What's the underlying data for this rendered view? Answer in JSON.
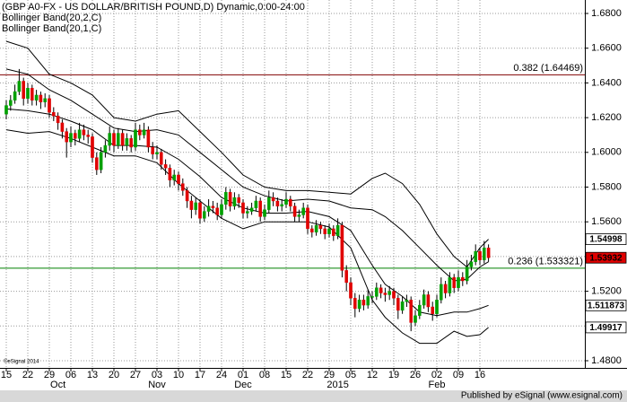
{
  "chart_data": {
    "type": "candlestick",
    "title": "(GBP A0-FX - US DOLLAR/BRITISH POUND,D) Dynamic,0:00-24:00",
    "indicators": [
      "Bollinger Band(20,2,C)",
      "Bollinger Band(20,1,C)"
    ],
    "watermark": "©eSignal 2014",
    "footer": "Published by eSignal (www.esignal.com)",
    "up_color": "#00a000",
    "down_color": "#e00000",
    "band_color": "#000000",
    "grid": true,
    "ylim": [
      1.48,
      1.68
    ],
    "yticks": [
      {
        "value": 1.48,
        "label": "1.4800"
      },
      {
        "value": 1.5,
        "label": "1.5000"
      },
      {
        "value": 1.52,
        "label": "1.5200"
      },
      {
        "value": 1.54,
        "label": "1.5400"
      },
      {
        "value": 1.56,
        "label": "1.5600"
      },
      {
        "value": 1.58,
        "label": "1.5800"
      },
      {
        "value": 1.6,
        "label": "1.6000"
      },
      {
        "value": 1.62,
        "label": "1.6200"
      },
      {
        "value": 1.64,
        "label": "1.6400"
      },
      {
        "value": 1.66,
        "label": "1.6600"
      },
      {
        "value": 1.68,
        "label": "1.6800"
      }
    ],
    "categories": [
      "15",
      null,
      null,
      null,
      null,
      "22",
      null,
      null,
      null,
      null,
      "29",
      null,
      null,
      null,
      null,
      "06",
      null,
      null,
      null,
      null,
      "13",
      null,
      null,
      null,
      null,
      "20",
      null,
      null,
      null,
      null,
      "27",
      null,
      null,
      null,
      null,
      "03",
      null,
      null,
      null,
      null,
      "10",
      null,
      null,
      null,
      null,
      "17",
      null,
      null,
      null,
      null,
      "24",
      null,
      null,
      null,
      null,
      "01",
      null,
      null,
      null,
      null,
      "08",
      null,
      null,
      null,
      null,
      "15",
      null,
      null,
      null,
      null,
      "22",
      null,
      null,
      null,
      null,
      "29",
      null,
      null,
      null,
      null,
      "05",
      null,
      null,
      null,
      null,
      "12",
      null,
      null,
      null,
      null,
      "19",
      null,
      null,
      null,
      null,
      "26",
      null,
      null,
      null,
      null,
      "02",
      null,
      null,
      null,
      null,
      "09",
      null,
      null,
      null,
      null,
      "16",
      null,
      null
    ],
    "months": [
      {
        "label": "Oct",
        "at": 12
      },
      {
        "label": "Nov",
        "at": 35
      },
      {
        "label": "Dec",
        "at": 55
      },
      {
        "label": "2015",
        "at": 77
      },
      {
        "label": "Feb",
        "at": 100
      }
    ],
    "candles": [
      [
        1.622,
        1.63,
        1.619,
        1.627
      ],
      [
        1.627,
        1.633,
        1.624,
        1.63
      ],
      [
        1.63,
        1.639,
        1.628,
        1.635
      ],
      [
        1.635,
        1.648,
        1.633,
        1.641
      ],
      [
        1.641,
        1.643,
        1.627,
        1.631
      ],
      [
        1.631,
        1.64,
        1.628,
        1.637
      ],
      [
        1.637,
        1.639,
        1.627,
        1.63
      ],
      [
        1.63,
        1.636,
        1.627,
        1.633
      ],
      [
        1.633,
        1.635,
        1.625,
        1.629
      ],
      [
        1.629,
        1.634,
        1.626,
        1.631
      ],
      [
        1.631,
        1.633,
        1.62,
        1.623
      ],
      [
        1.623,
        1.626,
        1.618,
        1.621
      ],
      [
        1.621,
        1.623,
        1.613,
        1.617
      ],
      [
        1.617,
        1.619,
        1.608,
        1.612
      ],
      [
        1.612,
        1.614,
        1.597,
        1.606
      ],
      [
        1.606,
        1.615,
        1.603,
        1.611
      ],
      [
        1.611,
        1.613,
        1.604,
        1.608
      ],
      [
        1.608,
        1.617,
        1.606,
        1.613
      ],
      [
        1.613,
        1.616,
        1.607,
        1.61
      ],
      [
        1.61,
        1.613,
        1.605,
        1.609
      ],
      [
        1.609,
        1.611,
        1.594,
        1.597
      ],
      [
        1.597,
        1.6,
        1.587,
        1.59
      ],
      [
        1.59,
        1.603,
        1.588,
        1.6
      ],
      [
        1.6,
        1.607,
        1.597,
        1.604
      ],
      [
        1.604,
        1.615,
        1.601,
        1.611
      ],
      [
        1.611,
        1.613,
        1.6,
        1.604
      ],
      [
        1.604,
        1.614,
        1.602,
        1.611
      ],
      [
        1.611,
        1.613,
        1.601,
        1.604
      ],
      [
        1.604,
        1.611,
        1.601,
        1.608
      ],
      [
        1.608,
        1.61,
        1.6,
        1.603
      ],
      [
        1.603,
        1.617,
        1.601,
        1.613
      ],
      [
        1.613,
        1.616,
        1.607,
        1.61
      ],
      [
        1.61,
        1.617,
        1.608,
        1.613
      ],
      [
        1.613,
        1.615,
        1.6,
        1.603
      ],
      [
        1.603,
        1.606,
        1.596,
        1.599
      ],
      [
        1.599,
        1.604,
        1.596,
        1.6
      ],
      [
        1.6,
        1.602,
        1.59,
        1.593
      ],
      [
        1.593,
        1.596,
        1.587,
        1.591
      ],
      [
        1.591,
        1.593,
        1.58,
        1.584
      ],
      [
        1.584,
        1.59,
        1.581,
        1.587
      ],
      [
        1.587,
        1.589,
        1.578,
        1.582
      ],
      [
        1.582,
        1.585,
        1.575,
        1.578
      ],
      [
        1.578,
        1.58,
        1.568,
        1.572
      ],
      [
        1.572,
        1.575,
        1.562,
        1.567
      ],
      [
        1.567,
        1.574,
        1.564,
        1.571
      ],
      [
        1.571,
        1.573,
        1.559,
        1.562
      ],
      [
        1.562,
        1.569,
        1.56,
        1.566
      ],
      [
        1.566,
        1.573,
        1.563,
        1.569
      ],
      [
        1.569,
        1.572,
        1.565,
        1.568
      ],
      [
        1.568,
        1.571,
        1.561,
        1.564
      ],
      [
        1.564,
        1.573,
        1.562,
        1.57
      ],
      [
        1.57,
        1.58,
        1.567,
        1.577
      ],
      [
        1.577,
        1.579,
        1.566,
        1.569
      ],
      [
        1.569,
        1.577,
        1.567,
        1.574
      ],
      [
        1.574,
        1.576,
        1.568,
        1.571
      ],
      [
        1.571,
        1.573,
        1.562,
        1.565
      ],
      [
        1.565,
        1.569,
        1.562,
        1.566
      ],
      [
        1.566,
        1.571,
        1.564,
        1.568
      ],
      [
        1.568,
        1.575,
        1.566,
        1.572
      ],
      [
        1.572,
        1.574,
        1.56,
        1.563
      ],
      [
        1.563,
        1.57,
        1.561,
        1.567
      ],
      [
        1.567,
        1.578,
        1.565,
        1.574
      ],
      [
        1.574,
        1.577,
        1.569,
        1.572
      ],
      [
        1.572,
        1.574,
        1.566,
        1.569
      ],
      [
        1.569,
        1.573,
        1.566,
        1.57
      ],
      [
        1.57,
        1.577,
        1.568,
        1.573
      ],
      [
        1.573,
        1.575,
        1.566,
        1.569
      ],
      [
        1.569,
        1.571,
        1.56,
        1.563
      ],
      [
        1.563,
        1.567,
        1.56,
        1.564
      ],
      [
        1.564,
        1.571,
        1.562,
        1.568
      ],
      [
        1.568,
        1.57,
        1.553,
        1.556
      ],
      [
        1.556,
        1.558,
        1.551,
        1.554
      ],
      [
        1.554,
        1.561,
        1.552,
        1.558
      ],
      [
        1.558,
        1.56,
        1.553,
        1.556
      ],
      [
        1.556,
        1.558,
        1.55,
        1.553
      ],
      [
        1.553,
        1.559,
        1.551,
        1.556
      ],
      [
        1.556,
        1.558,
        1.549,
        1.552
      ],
      [
        1.552,
        1.562,
        1.55,
        1.558
      ],
      [
        1.558,
        1.56,
        1.528,
        1.532
      ],
      [
        1.532,
        1.535,
        1.52,
        1.525
      ],
      [
        1.525,
        1.528,
        1.512,
        1.516
      ],
      [
        1.516,
        1.519,
        1.505,
        1.51
      ],
      [
        1.51,
        1.518,
        1.508,
        1.515
      ],
      [
        1.515,
        1.518,
        1.509,
        1.512
      ],
      [
        1.512,
        1.521,
        1.51,
        1.517
      ],
      [
        1.517,
        1.52,
        1.513,
        1.517
      ],
      [
        1.517,
        1.525,
        1.515,
        1.522
      ],
      [
        1.522,
        1.524,
        1.516,
        1.519
      ],
      [
        1.519,
        1.522,
        1.514,
        1.518
      ],
      [
        1.518,
        1.523,
        1.515,
        1.52
      ],
      [
        1.52,
        1.522,
        1.512,
        1.516
      ],
      [
        1.516,
        1.518,
        1.504,
        1.509
      ],
      [
        1.509,
        1.517,
        1.507,
        1.514
      ],
      [
        1.514,
        1.518,
        1.511,
        1.515
      ],
      [
        1.515,
        1.517,
        1.497,
        1.502
      ],
      [
        1.502,
        1.509,
        1.5,
        1.506
      ],
      [
        1.506,
        1.515,
        1.504,
        1.512
      ],
      [
        1.512,
        1.521,
        1.51,
        1.518
      ],
      [
        1.518,
        1.52,
        1.508,
        1.511
      ],
      [
        1.511,
        1.514,
        1.503,
        1.507
      ],
      [
        1.507,
        1.518,
        1.505,
        1.515
      ],
      [
        1.515,
        1.528,
        1.513,
        1.524
      ],
      [
        1.524,
        1.526,
        1.516,
        1.519
      ],
      [
        1.519,
        1.531,
        1.517,
        1.528
      ],
      [
        1.528,
        1.53,
        1.519,
        1.522
      ],
      [
        1.522,
        1.532,
        1.52,
        1.528
      ],
      [
        1.528,
        1.531,
        1.523,
        1.526
      ],
      [
        1.526,
        1.538,
        1.524,
        1.534
      ],
      [
        1.534,
        1.541,
        1.532,
        1.537
      ],
      [
        1.537,
        1.547,
        1.535,
        1.543
      ],
      [
        1.543,
        1.545,
        1.535,
        1.538
      ],
      [
        1.538,
        1.549,
        1.536,
        1.545
      ],
      [
        1.545,
        1.547,
        1.537,
        1.5393
      ]
    ],
    "bands": [
      {
        "x": [
          0,
          5,
          10,
          15,
          20,
          25,
          30,
          35,
          40,
          45,
          50,
          55,
          60,
          65,
          70,
          75,
          80,
          85,
          88,
          92,
          96,
          100,
          104,
          107,
          110,
          112
        ],
        "values": [
          1.664,
          1.66,
          1.645,
          1.64,
          1.633,
          1.62,
          1.618,
          1.622,
          1.624,
          1.612,
          1.6,
          1.587,
          1.58,
          1.578,
          1.578,
          1.577,
          1.576,
          1.585,
          1.588,
          1.582,
          1.57,
          1.553,
          1.54,
          1.534,
          1.545,
          1.54998
        ]
      },
      {
        "x": [
          0,
          5,
          10,
          15,
          20,
          25,
          30,
          35,
          40,
          45,
          50,
          55,
          60,
          65,
          70,
          75,
          80,
          85,
          88,
          92,
          96,
          100,
          104,
          107,
          110,
          112
        ],
        "values": [
          1.648,
          1.645,
          1.636,
          1.63,
          1.622,
          1.614,
          1.612,
          1.613,
          1.61,
          1.6,
          1.59,
          1.58,
          1.575,
          1.572,
          1.573,
          1.572,
          1.568,
          1.567,
          1.563,
          1.555,
          1.545,
          1.535,
          1.526,
          1.527,
          1.534,
          1.537
        ]
      },
      {
        "x": [
          0,
          5,
          10,
          15,
          20,
          25,
          30,
          35,
          40,
          45,
          50,
          55,
          60,
          65,
          70,
          75,
          80,
          85,
          88,
          92,
          96,
          100,
          104,
          107,
          110,
          112
        ],
        "values": [
          1.625,
          1.624,
          1.622,
          1.618,
          1.613,
          1.604,
          1.604,
          1.603,
          1.596,
          1.586,
          1.574,
          1.568,
          1.565,
          1.565,
          1.566,
          1.563,
          1.555,
          1.535,
          1.524,
          1.517,
          1.508,
          1.506,
          1.508,
          1.508,
          1.51,
          1.511873
        ]
      },
      {
        "x": [
          0,
          5,
          10,
          15,
          20,
          25,
          30,
          35,
          40,
          45,
          50,
          55,
          60,
          65,
          70,
          75,
          80,
          85,
          88,
          92,
          96,
          100,
          104,
          107,
          110,
          112
        ],
        "values": [
          1.613,
          1.611,
          1.612,
          1.608,
          1.603,
          1.598,
          1.598,
          1.594,
          1.582,
          1.572,
          1.562,
          1.556,
          1.56,
          1.56,
          1.56,
          1.557,
          1.545,
          1.515,
          1.505,
          1.496,
          1.49,
          1.49,
          1.497,
          1.494,
          1.495,
          1.49917
        ]
      }
    ],
    "levels": [
      {
        "value": 1.64469,
        "label": "0.382 (1.64469)",
        "color": "#800000"
      },
      {
        "value": 1.533321,
        "label": "0.236 (1.533321)",
        "color": "#008000"
      }
    ],
    "price_tags": [
      {
        "value": 1.54998,
        "color": "#ffffff"
      },
      {
        "value": 1.53932,
        "color": "#e00000"
      },
      {
        "value": 1.511873,
        "color": "#ffffff"
      },
      {
        "value": 1.49917,
        "color": "#ffffff"
      }
    ]
  }
}
